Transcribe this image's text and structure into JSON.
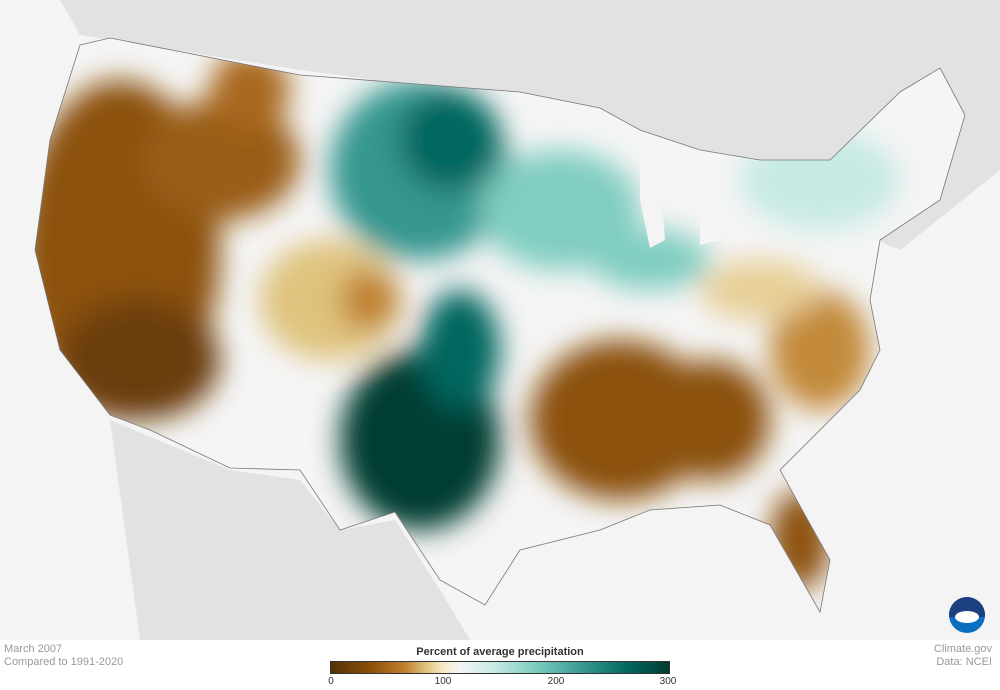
{
  "map": {
    "region": "Contiguous United States",
    "variable": "Percent of average precipitation",
    "colors": {
      "driest": "#543005",
      "dry": "#bf812d",
      "normal": "#f5f5f5",
      "wet": "#80cdc1",
      "wettest": "#003c30",
      "land_outside": "#e2e2e2",
      "background": "#f4f4f4"
    }
  },
  "caption": {
    "date": "March 2007",
    "baseline": "Compared to 1991-2020"
  },
  "credits": {
    "site": "Climate.gov",
    "source": "Data: NCEI",
    "logo_text": "NOAA"
  },
  "legend": {
    "title": "Percent of average precipitation",
    "ticks": [
      "0",
      "100",
      "200",
      "300"
    ],
    "range": [
      0,
      300
    ]
  }
}
